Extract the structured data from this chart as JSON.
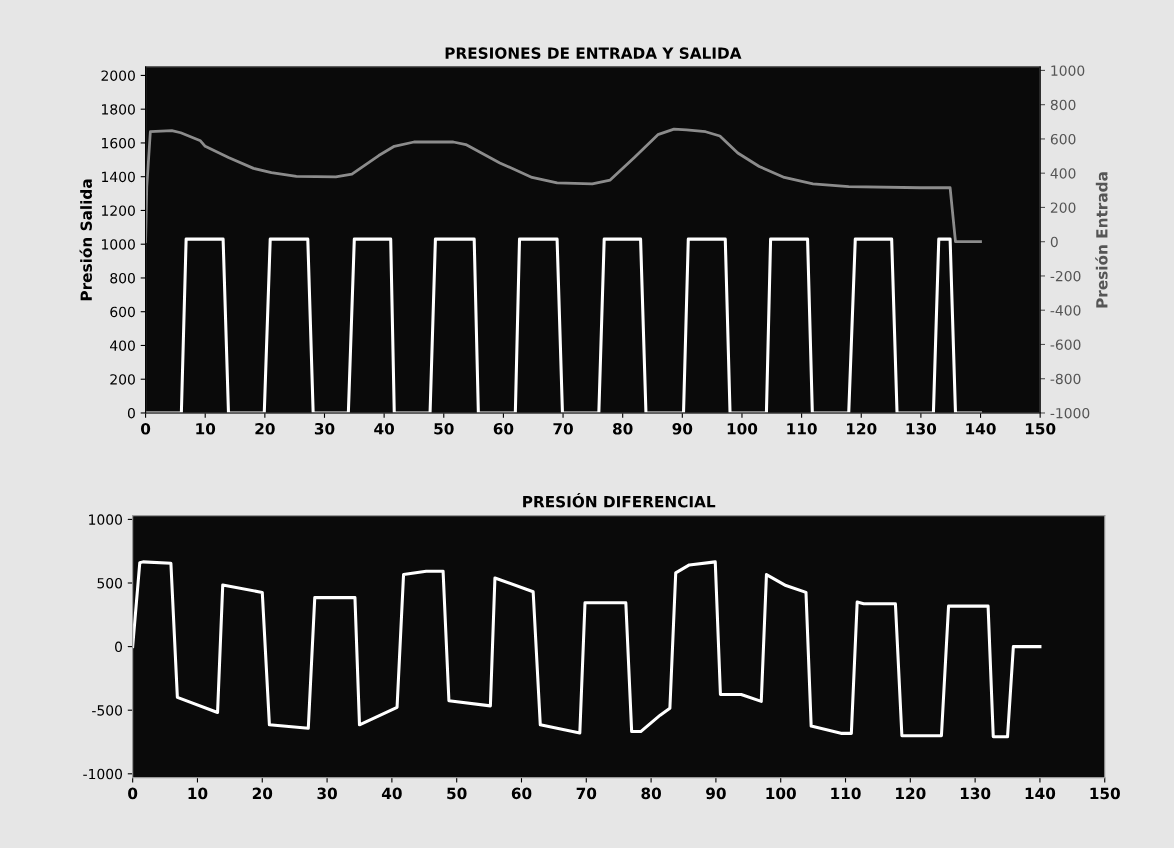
{
  "chart_data": [
    {
      "type": "line",
      "title": "PRESIONES DE ENTRADA Y SALIDA",
      "ylabel": "Presión Salida",
      "y2label": "Presión Entrada",
      "xlim": [
        0,
        150
      ],
      "xticks": [
        0,
        10,
        20,
        30,
        40,
        50,
        60,
        70,
        80,
        90,
        100,
        110,
        120,
        130,
        140,
        150
      ],
      "ylim": [
        0,
        2050
      ],
      "yticks": [
        0,
        200,
        400,
        600,
        800,
        1000,
        1200,
        1400,
        1600,
        1800,
        2000
      ],
      "y2lim": [
        -1000,
        1020
      ],
      "y2ticks": [
        -1000,
        -800,
        -600,
        -400,
        -200,
        0,
        200,
        400,
        600,
        800,
        1000
      ],
      "grid": false,
      "series": [
        {
          "color": "#ffffff",
          "x": [
            0,
            6.0,
            6.8,
            13.0,
            13.9,
            19.9,
            20.9,
            27.2,
            28.1,
            34.0,
            35.0,
            41.1,
            41.7,
            47.7,
            48.6,
            55.1,
            55.8,
            62.0,
            62.7,
            69.0,
            69.9,
            76.0,
            76.9,
            83.0,
            83.9,
            90.2,
            91.0,
            97.2,
            98.0,
            104.1,
            104.8,
            111.0,
            111.8,
            117.9,
            119.0,
            125.1,
            126.0,
            132.1,
            133.0,
            134.9,
            135.8,
            140
          ],
          "values": [
            0,
            0,
            1030,
            1030,
            0,
            0,
            1030,
            1030,
            0,
            0,
            1030,
            1030,
            0,
            0,
            1030,
            1030,
            0,
            0,
            1030,
            1030,
            0,
            0,
            1030,
            1030,
            0,
            0,
            1030,
            1030,
            0,
            0,
            1030,
            1030,
            0,
            0,
            1030,
            1030,
            0,
            0,
            1030,
            1030,
            0,
            0
          ]
        },
        {
          "color": "#8c8c8c",
          "axis": "y2",
          "x": [
            0,
            0.2,
            0.8,
            4.4,
            5.9,
            9.2,
            10.0,
            13.9,
            18.1,
            21.1,
            25.3,
            31.9,
            34.6,
            39.1,
            41.7,
            45.0,
            51.6,
            53.7,
            59.4,
            64.8,
            69.0,
            74.9,
            77.9,
            82.0,
            85.9,
            88.6,
            90.7,
            93.9,
            96.3,
            99.3,
            102.9,
            107.1,
            111.9,
            117.9,
            129.9,
            134.9,
            135.8,
            140
          ],
          "values": [
            0,
            321,
            642,
            649,
            636,
            589,
            557,
            492,
            428,
            403,
            381,
            379,
            394,
            503,
            557,
            582,
            582,
            567,
            460,
            375,
            343,
            338,
            360,
            493,
            625,
            657,
            653,
            642,
            617,
            518,
            439,
            375,
            338,
            321,
            315,
            315,
            0,
            0
          ]
        }
      ]
    },
    {
      "type": "line",
      "title": "PRESIÓN DIFERENCIAL",
      "xlim": [
        0,
        150
      ],
      "xticks": [
        0,
        10,
        20,
        30,
        40,
        50,
        60,
        70,
        80,
        90,
        100,
        110,
        120,
        130,
        140,
        150
      ],
      "ylim": [
        -1030,
        1030
      ],
      "yticks": [
        -1000,
        -500,
        0,
        500,
        1000
      ],
      "grid": false,
      "series": [
        {
          "color": "#ffffff",
          "x": [
            0,
            1.1,
            1.6,
            5.9,
            6.9,
            13.1,
            13.9,
            20.0,
            21.1,
            27.1,
            28.1,
            34.3,
            35.0,
            40.8,
            41.8,
            45.3,
            47.9,
            48.8,
            55.2,
            55.9,
            61.8,
            62.9,
            69.0,
            69.8,
            76.1,
            77.0,
            78.4,
            81.4,
            82.9,
            83.8,
            85.9,
            89.9,
            90.7,
            93.9,
            97.0,
            97.8,
            100.8,
            103.9,
            104.7,
            109.3,
            110.9,
            111.8,
            112.8,
            117.7,
            118.7,
            124.8,
            125.9,
            132.0,
            132.8,
            135.0,
            135.9,
            140.0
          ],
          "values": [
            0,
            660,
            666,
            655,
            -399,
            -518,
            485,
            426,
            -615,
            -642,
            385,
            385,
            -615,
            -477,
            566,
            593,
            593,
            -426,
            -466,
            539,
            431,
            -615,
            -679,
            345,
            345,
            -668,
            -668,
            -539,
            -485,
            580,
            642,
            666,
            -377,
            -377,
            -431,
            566,
            480,
            426,
            -625,
            -682,
            -682,
            350,
            337,
            337,
            -701,
            -701,
            318,
            318,
            -709,
            -709,
            0,
            0
          ]
        }
      ]
    }
  ]
}
